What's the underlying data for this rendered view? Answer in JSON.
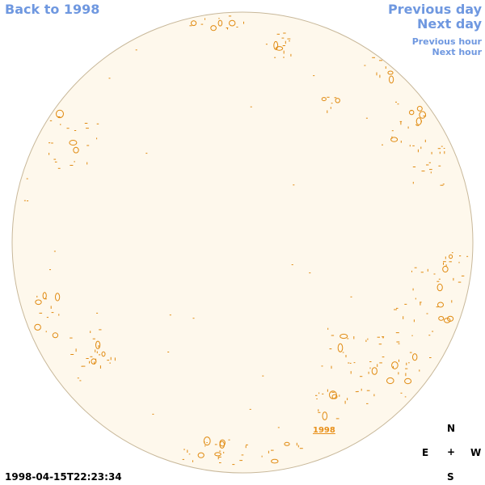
{
  "nav": {
    "back": "Back to 1998",
    "previous_day": "Previous day",
    "next_day": "Next day",
    "previous_hour": "Previous hour",
    "next_hour": "Next hour"
  },
  "timestamp": "1998-04-15T22:23:34",
  "year_label": "1998",
  "compass": {
    "north": "N",
    "south": "S",
    "east": "E",
    "west": "W",
    "center": "+"
  },
  "colors": {
    "disk_fill": "#fef8ec",
    "disk_stroke": "#c8b89a",
    "contour": "#e08a10",
    "link": "#6f98e0"
  }
}
